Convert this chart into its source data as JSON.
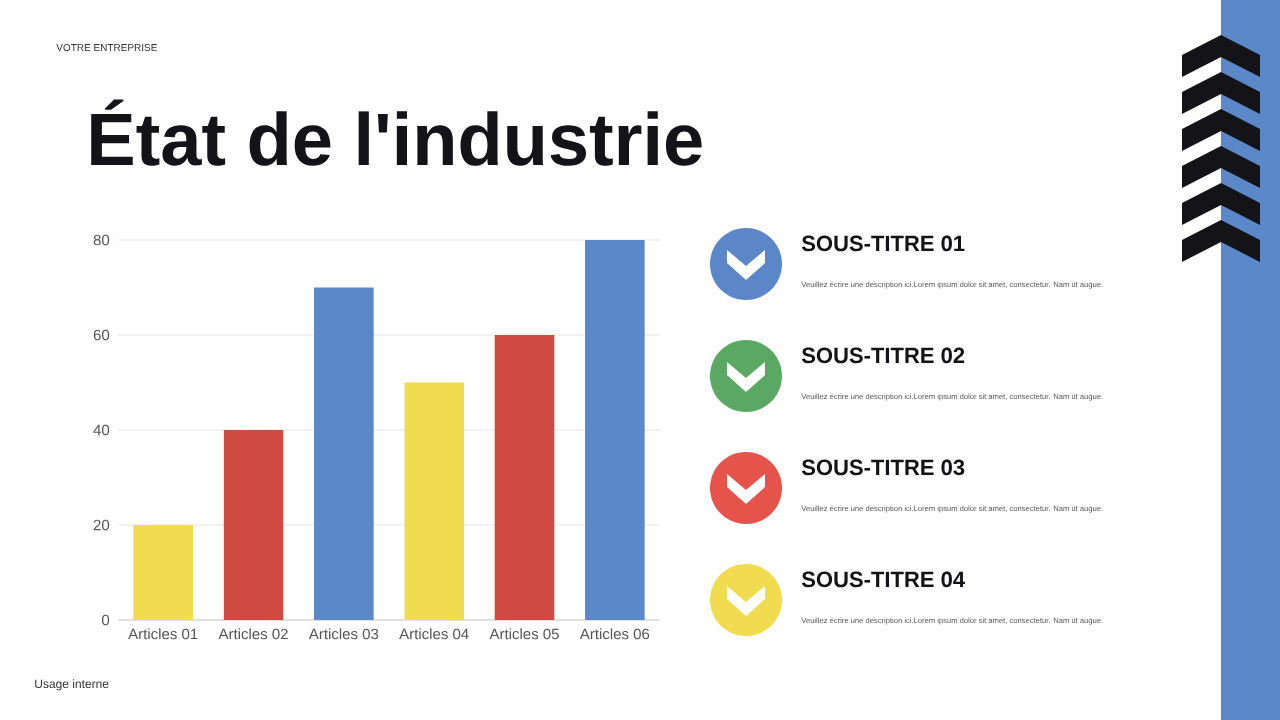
{
  "chart_data": [
    {
      "type": "bar",
      "title": "État de l'industrie",
      "categories": [
        "Articles 01",
        "Articles 02",
        "Articles 03",
        "Articles 04",
        "Articles 05",
        "Articles 06"
      ],
      "values": [
        20,
        40,
        70,
        50,
        60,
        80
      ],
      "colors": [
        "#f0dc4e",
        "#cf4a40",
        "#5a88c8",
        "#f0dc4e",
        "#cf4a40",
        "#5a88c8"
      ],
      "ylim": [
        0,
        80
      ],
      "yticks": [
        0,
        20,
        40,
        60,
        80
      ],
      "grid": "y",
      "annotations": [
        "VOTRE ENTREPRISE",
        "Usage interne"
      ]
    },
    {
      "type": "other",
      "annotations": [
        "SOUS-TITRE 01",
        "Veuillez écrire une description ici.Lorem ipsum dolor sit amet, consectetur. Nam ut augue.",
        "SOUS-TITRE 02",
        "Veuillez écrire une description ici.Lorem ipsum dolor sit amet, consectetur. Nam ut augue.",
        "SOUS-TITRE 03",
        "Veuillez écrire une description ici.Lorem ipsum dolor sit amet, consectetur. Nam ut augue.",
        "SOUS-TITRE 04",
        "Veuillez écrire une description ici.Lorem ipsum dolor sit amet, consectetur. Nam ut augue."
      ]
    }
  ]
}
